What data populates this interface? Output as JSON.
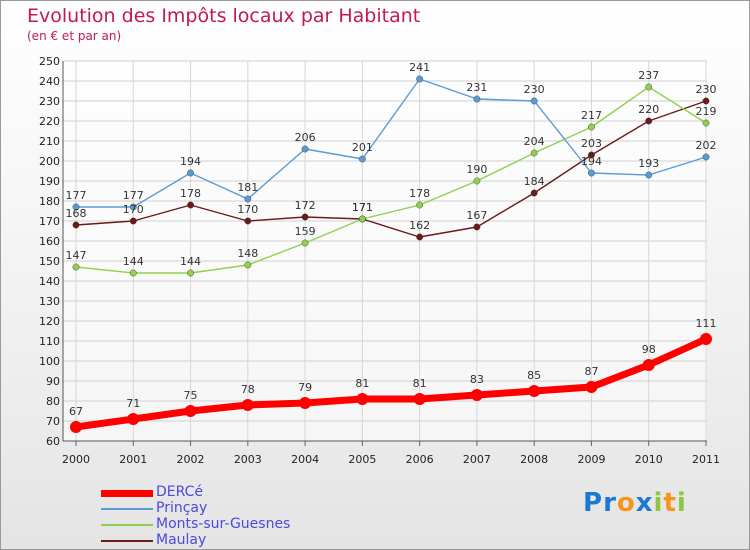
{
  "chart_data": {
    "type": "line",
    "title": "Evolution des Impôts locaux par Habitant",
    "subtitle": "(en € et par an)",
    "xlabel": "",
    "ylabel": "",
    "categories": [
      "2000",
      "2001",
      "2002",
      "2003",
      "2004",
      "2005",
      "2006",
      "2007",
      "2008",
      "2009",
      "2010",
      "2011"
    ],
    "ylim": [
      60,
      250
    ],
    "yticks": [
      60,
      70,
      80,
      90,
      100,
      110,
      120,
      130,
      140,
      150,
      160,
      170,
      180,
      190,
      200,
      210,
      220,
      230,
      240,
      250
    ],
    "grid": true,
    "legend_position": "bottom-left",
    "series": [
      {
        "name": "DERCé",
        "color": "#ff0000",
        "values": [
          67,
          71,
          75,
          78,
          79,
          81,
          81,
          83,
          85,
          87,
          98,
          111
        ]
      },
      {
        "name": "Prinçay",
        "color": "#5b9bd5",
        "values": [
          177,
          177,
          194,
          181,
          206,
          201,
          241,
          231,
          230,
          194,
          193,
          202
        ]
      },
      {
        "name": "Monts-sur-Guesnes",
        "color": "#8fd14f",
        "values": [
          147,
          144,
          144,
          148,
          159,
          171,
          178,
          190,
          204,
          217,
          237,
          219
        ]
      },
      {
        "name": "Maulay",
        "color": "#6b1a1a",
        "values": [
          168,
          170,
          178,
          170,
          172,
          171,
          162,
          167,
          184,
          203,
          220,
          230
        ]
      }
    ]
  },
  "logo": {
    "text": "Proxiti",
    "letters": [
      {
        "ch": "P",
        "color": "#1f77d4"
      },
      {
        "ch": "r",
        "color": "#1f77d4"
      },
      {
        "ch": "o",
        "color": "#f7941d"
      },
      {
        "ch": "x",
        "color": "#1f77d4"
      },
      {
        "ch": "i",
        "color": "#8dc63f"
      },
      {
        "ch": "t",
        "color": "#f7941d"
      },
      {
        "ch": "i",
        "color": "#8dc63f"
      }
    ]
  }
}
